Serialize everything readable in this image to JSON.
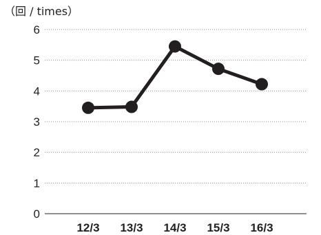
{
  "chart_data": {
    "type": "line",
    "unit_label": "（回 / times）",
    "categories": [
      "12/3",
      "13/3",
      "14/3",
      "15/3",
      "16/3"
    ],
    "highlight_category": "16/3",
    "series": [
      {
        "values": [
          3.45,
          3.48,
          5.45,
          4.72,
          4.22
        ]
      }
    ],
    "ylim": [
      0,
      6
    ],
    "yticks": [
      0,
      1,
      2,
      3,
      4,
      5,
      6
    ],
    "grid": true,
    "grid_style": "dotted",
    "colors": {
      "line": "#231f20",
      "text": "#231f20",
      "highlight": "#1a6fb8",
      "grid": "#8c8c8c"
    }
  }
}
